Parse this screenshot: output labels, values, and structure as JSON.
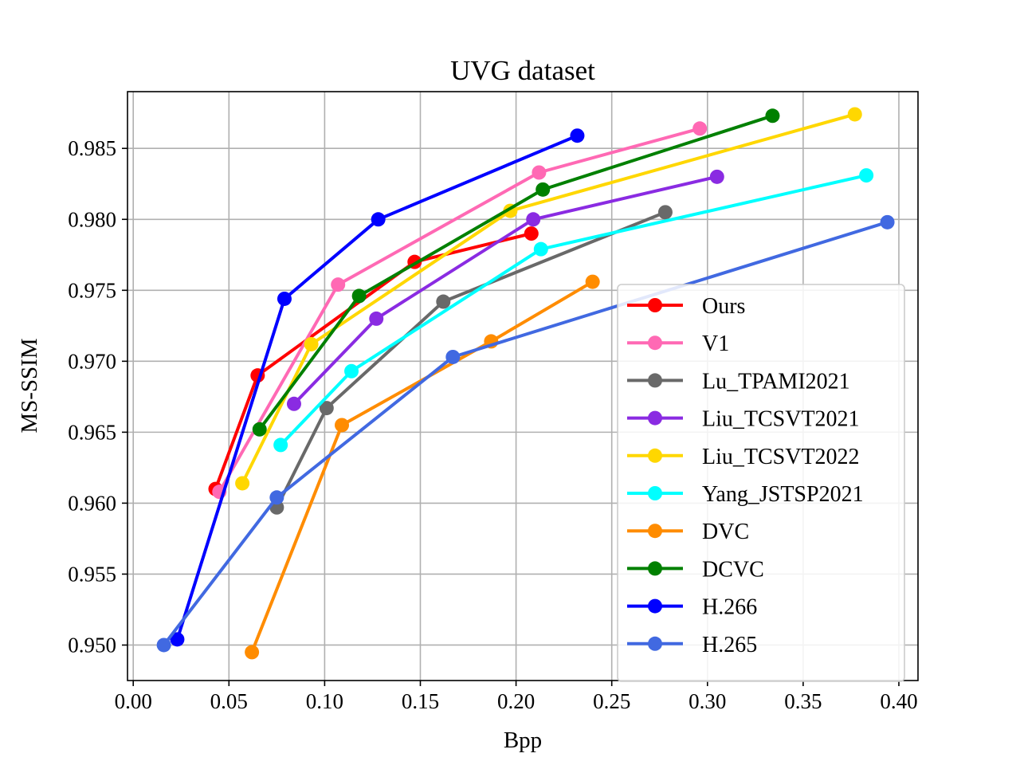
{
  "chart_data": {
    "type": "line",
    "title": "UVG dataset",
    "xlabel": "Bpp",
    "ylabel": "MS-SSIM",
    "xlim": [
      -0.003,
      0.41
    ],
    "ylim": [
      0.9475,
      0.989
    ],
    "xticks": [
      0.0,
      0.05,
      0.1,
      0.15,
      0.2,
      0.25,
      0.3,
      0.35,
      0.4
    ],
    "xtick_labels": [
      "0.00",
      "0.05",
      "0.10",
      "0.15",
      "0.20",
      "0.25",
      "0.30",
      "0.35",
      "0.40"
    ],
    "yticks": [
      0.95,
      0.955,
      0.96,
      0.965,
      0.97,
      0.975,
      0.98,
      0.985
    ],
    "ytick_labels": [
      "0.950",
      "0.955",
      "0.960",
      "0.965",
      "0.970",
      "0.975",
      "0.980",
      "0.985"
    ],
    "grid": true,
    "legend_position": "lower-right",
    "series": [
      {
        "name": "Ours",
        "color": "#ff0000",
        "points": [
          [
            0.043,
            0.961
          ],
          [
            0.065,
            0.969
          ],
          [
            0.147,
            0.977
          ],
          [
            0.208,
            0.979
          ]
        ]
      },
      {
        "name": "V1",
        "color": "#ff69b4",
        "points": [
          [
            0.045,
            0.9608
          ],
          [
            0.107,
            0.9754
          ],
          [
            0.212,
            0.9833
          ],
          [
            0.296,
            0.9864
          ]
        ]
      },
      {
        "name": "Lu_TPAMI2021",
        "color": "#696969",
        "points": [
          [
            0.075,
            0.9597
          ],
          [
            0.101,
            0.9667
          ],
          [
            0.162,
            0.9742
          ],
          [
            0.278,
            0.9805
          ]
        ]
      },
      {
        "name": "Liu_TCSVT2021",
        "color": "#8a2be2",
        "points": [
          [
            0.084,
            0.967
          ],
          [
            0.127,
            0.973
          ],
          [
            0.209,
            0.98
          ],
          [
            0.305,
            0.983
          ]
        ]
      },
      {
        "name": "Liu_TCSVT2022",
        "color": "#ffd700",
        "points": [
          [
            0.057,
            0.9614
          ],
          [
            0.093,
            0.9712
          ],
          [
            0.197,
            0.9806
          ],
          [
            0.377,
            0.9874
          ]
        ]
      },
      {
        "name": "Yang_JSTSP2021",
        "color": "#00ffff",
        "points": [
          [
            0.077,
            0.9641
          ],
          [
            0.114,
            0.9693
          ],
          [
            0.213,
            0.9779
          ],
          [
            0.383,
            0.9831
          ]
        ]
      },
      {
        "name": "DVC",
        "color": "#ff8c00",
        "points": [
          [
            0.062,
            0.9495
          ],
          [
            0.109,
            0.9655
          ],
          [
            0.187,
            0.9714
          ],
          [
            0.24,
            0.9756
          ]
        ]
      },
      {
        "name": "DCVC",
        "color": "#008000",
        "points": [
          [
            0.066,
            0.9652
          ],
          [
            0.118,
            0.9746
          ],
          [
            0.214,
            0.9821
          ],
          [
            0.334,
            0.9873
          ]
        ]
      },
      {
        "name": "H.266",
        "color": "#0000ff",
        "points": [
          [
            0.023,
            0.9504
          ],
          [
            0.079,
            0.9744
          ],
          [
            0.128,
            0.98
          ],
          [
            0.232,
            0.9859
          ]
        ]
      },
      {
        "name": "H.265",
        "color": "#4169e1",
        "points": [
          [
            0.016,
            0.95
          ],
          [
            0.075,
            0.9604
          ],
          [
            0.167,
            0.9703
          ],
          [
            0.394,
            0.9798
          ]
        ]
      }
    ]
  }
}
